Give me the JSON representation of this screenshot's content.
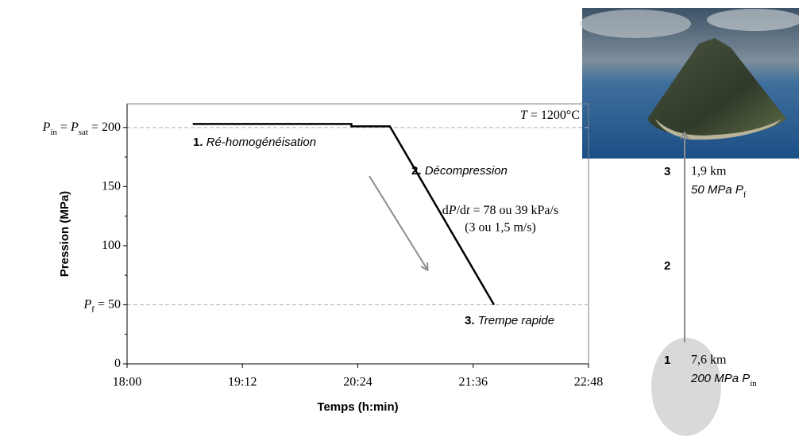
{
  "chart_data": {
    "type": "line",
    "x": [
      1121,
      1220,
      1220,
      1244,
      1309
    ],
    "values": [
      203,
      203,
      201,
      201,
      50
    ],
    "color": "#000000",
    "x_label": "Temps (h:min)",
    "y_label": "Pression (MPa)",
    "xlim": [
      1080,
      1368
    ],
    "ylim": [
      0,
      220
    ],
    "xticks": [
      {
        "value": 1080,
        "label": "18:00"
      },
      {
        "value": 1152,
        "label": "19:12"
      },
      {
        "value": 1224,
        "label": "20:24"
      },
      {
        "value": 1296,
        "label": "21:36"
      },
      {
        "value": 1368,
        "label": "22:48"
      }
    ],
    "yticks": [
      0,
      50,
      100,
      150,
      200
    ],
    "yminor_ticks": [
      25,
      75,
      125,
      175
    ],
    "reference_lines": [
      {
        "value": 200,
        "label_parts": [
          {
            "text": "P",
            "style": "italic"
          },
          {
            "text": "in",
            "style": "sub"
          },
          {
            "text": " = "
          },
          {
            "text": "P",
            "style": "italic"
          },
          {
            "text": "sat",
            "style": "sub"
          },
          {
            "text": " = "
          }
        ]
      },
      {
        "value": 50,
        "label_parts": [
          {
            "text": "P",
            "style": "italic"
          },
          {
            "text": "f",
            "style": "sub"
          },
          {
            "text": " = "
          }
        ]
      }
    ],
    "annotations": {
      "temperature": [
        {
          "text": "T",
          "style": "italic"
        },
        {
          "text": " = 1200°C"
        }
      ],
      "steps": [
        {
          "number": "1.",
          "label": "Ré-homogénéisation"
        },
        {
          "number": "2.",
          "label": "Décompression"
        },
        {
          "number": "3.",
          "label": "Trempe rapide"
        }
      ],
      "rate": [
        {
          "text": "d"
        },
        {
          "text": "P",
          "style": "italic"
        },
        {
          "text": "/d"
        },
        {
          "text": "t",
          "style": "italic"
        },
        {
          "text": " = 78 ou 39 kPa/s"
        }
      ],
      "rate_line2": "(3 ou 1,5 m/s)"
    }
  },
  "depth_diagram": {
    "levels": [
      {
        "number": "3",
        "depth": "1,9 km",
        "pressure": "50 MPa ",
        "symbol": "P",
        "subscript": "f"
      },
      {
        "number": "2"
      },
      {
        "number": "1",
        "depth": "7,6 km",
        "pressure": "200 MPa ",
        "symbol": "P",
        "subscript": "in"
      }
    ]
  }
}
